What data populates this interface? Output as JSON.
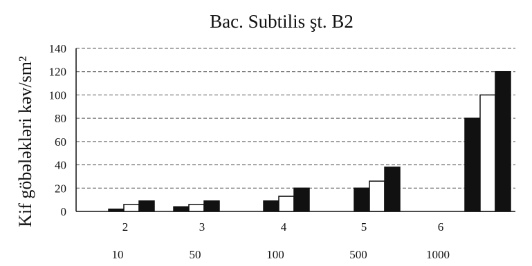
{
  "chart_data": {
    "type": "bar",
    "title": "Bac. Subtilis şt. B2",
    "ylabel": "Kif göbələkləri kəv/sm²",
    "xlabel": "",
    "ylim": [
      0,
      140
    ],
    "yticks": [
      "0",
      "20",
      "40",
      "60",
      "80",
      "100",
      "120",
      "140"
    ],
    "grid": true,
    "categories": [
      "2",
      "3",
      "4",
      "5",
      "6"
    ],
    "category_sublabels": [
      "10",
      "50",
      "100",
      "500",
      "1000"
    ],
    "series": [
      {
        "values": [
          2,
          4,
          9,
          20,
          80
        ],
        "color": "#111111"
      },
      {
        "values": [
          6,
          6,
          13,
          26,
          100
        ],
        "color": "#ffffff"
      },
      {
        "values": [
          9,
          9,
          20,
          38,
          120
        ],
        "color": "#111111"
      }
    ]
  }
}
